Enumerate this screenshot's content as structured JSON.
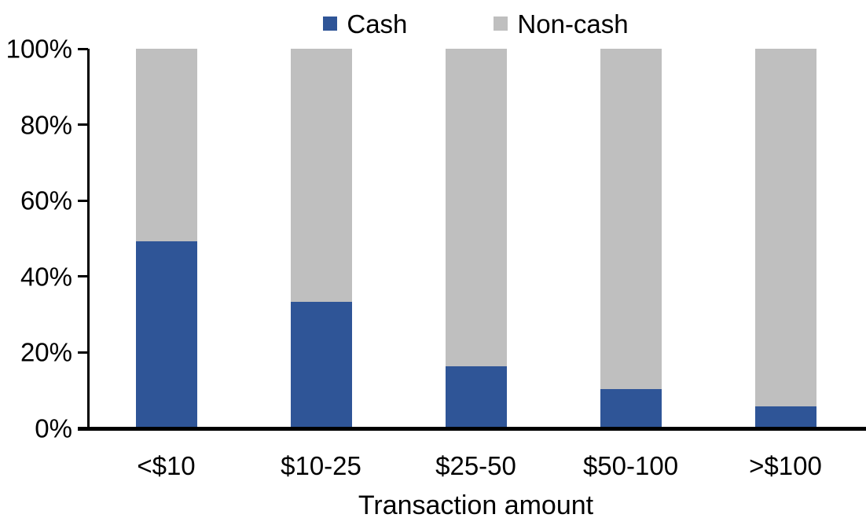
{
  "chart_data": {
    "type": "bar",
    "stacked": true,
    "percent_stacked": true,
    "title": "",
    "xlabel": "Transaction amount",
    "ylabel": "",
    "categories": [
      "<$10",
      "$10-25",
      "$25-50",
      "$50-100",
      ">$100"
    ],
    "series": [
      {
        "name": "Cash",
        "color": "#2F5597",
        "values": [
          49,
          33,
          16,
          10,
          5.5
        ]
      },
      {
        "name": "Non-cash",
        "color": "#BFBFBF",
        "values": [
          51,
          67,
          84,
          90,
          94.5
        ]
      }
    ],
    "ylim": [
      0,
      100
    ],
    "y_ticks": [
      "0%",
      "20%",
      "40%",
      "60%",
      "80%",
      "100%"
    ],
    "legend_position": "top",
    "grid": false,
    "colors": {
      "axis": "#000000",
      "background": "#FFFFFF",
      "cash": "#2F5597",
      "non_cash": "#BFBFBF"
    }
  }
}
